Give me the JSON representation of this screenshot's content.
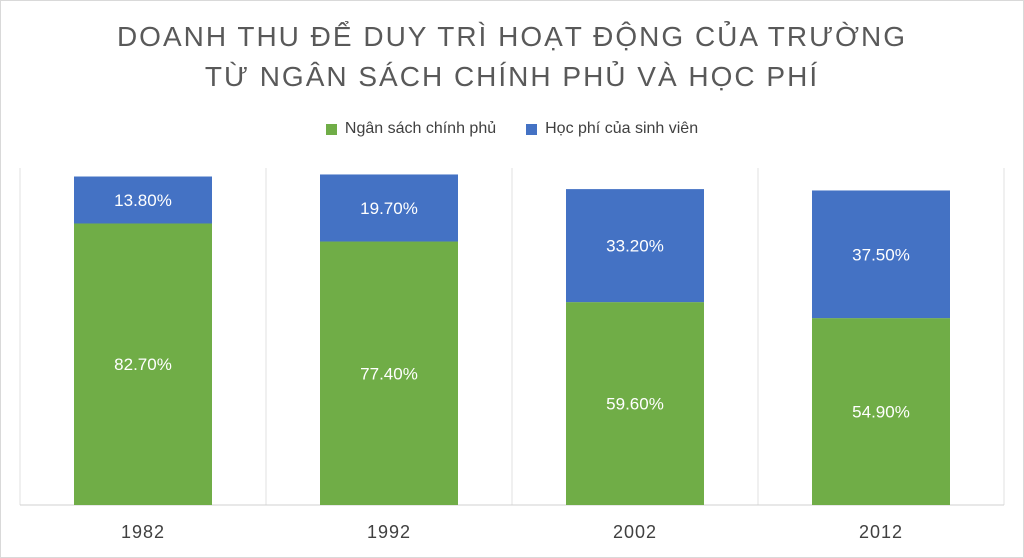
{
  "chart_data": {
    "type": "bar",
    "stacked": true,
    "title_line1": "DOANH THU ĐỂ DUY TRÌ HOẠT ĐỘNG CỦA TRƯỜNG",
    "title_line2": "TỪ NGÂN SÁCH CHÍNH PHỦ VÀ HỌC PHÍ",
    "categories": [
      "1982",
      "1992",
      "2002",
      "2012"
    ],
    "series": [
      {
        "name": "Ngân sách chính phủ",
        "color": "#70ad47",
        "values": [
          82.7,
          77.4,
          59.6,
          54.9
        ],
        "labels": [
          "82.70%",
          "77.40%",
          "59.60%",
          "54.90%"
        ]
      },
      {
        "name": "Học phí của sinh viên",
        "color": "#4472c4",
        "values": [
          13.8,
          19.7,
          33.2,
          37.5
        ],
        "labels": [
          "13.80%",
          "19.70%",
          "33.20%",
          "37.50%"
        ]
      }
    ],
    "ylim": [
      0,
      100
    ],
    "legend_position": "top",
    "grid": "vertical category dividers"
  }
}
